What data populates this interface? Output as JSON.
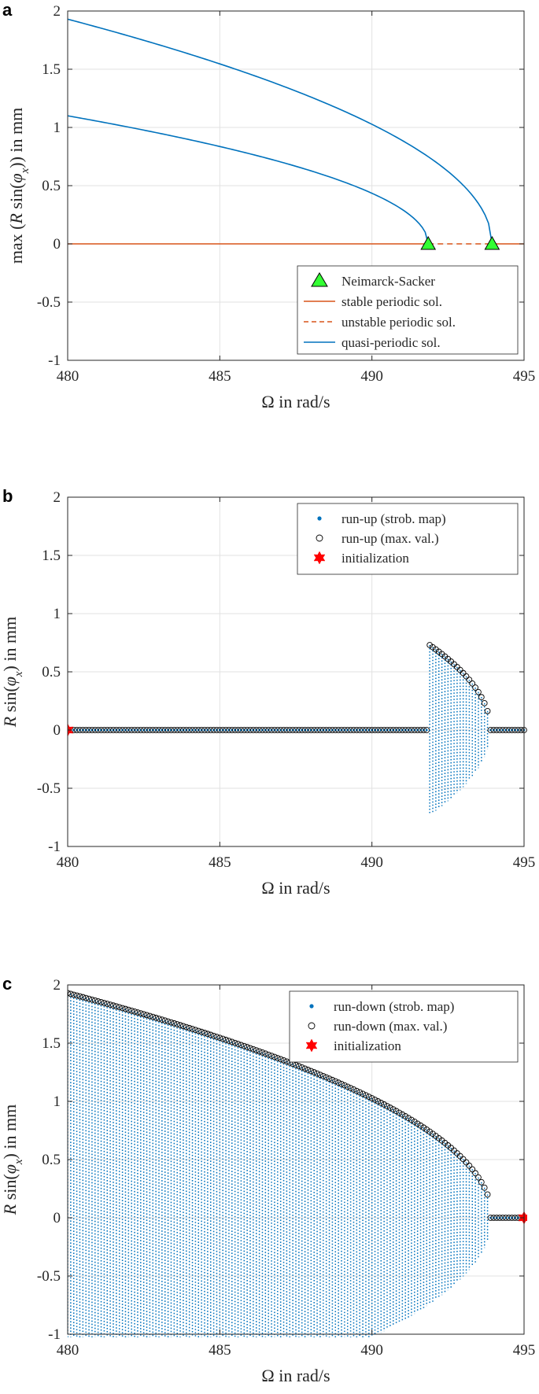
{
  "colors": {
    "blue": "#0072bd",
    "orange": "#d95319",
    "green": "#33ff33",
    "red": "#ff0000",
    "grid": "#e2e2e2",
    "axis": "#262626"
  },
  "chart_data": [
    {
      "panel": "a",
      "type": "line",
      "xlabel": "Ω in rad/s",
      "ylabel": "max (R sin(φx)) in mm",
      "xlim": [
        480,
        495
      ],
      "ylim": [
        -1,
        2
      ],
      "xticks": [
        480,
        485,
        490,
        495
      ],
      "yticks": [
        -1,
        -0.5,
        0,
        0.5,
        1,
        1.5,
        2
      ],
      "ytick_labels": [
        "-1",
        "-0.5",
        "0",
        "0.5",
        "1",
        "1.5",
        "2"
      ],
      "grid": true,
      "legend_position": "bottom-right",
      "legend": [
        "Neimarck-Sacker",
        "stable periodic sol.",
        "unstable periodic sol.",
        "quasi-periodic sol."
      ],
      "series": [
        {
          "name": "stable periodic sol.",
          "style": "solid",
          "color": "orange",
          "x": [
            480,
            491.85
          ],
          "y": [
            0,
            0
          ]
        },
        {
          "name": "unstable periodic sol.",
          "style": "dashed",
          "color": "orange",
          "x": [
            491.85,
            493.95
          ],
          "y": [
            0,
            0
          ]
        },
        {
          "name": "stable periodic sol.",
          "style": "solid",
          "color": "orange",
          "x": [
            493.95,
            495
          ],
          "y": [
            0,
            0
          ]
        },
        {
          "name": "quasi-periodic sol.",
          "style": "solid",
          "color": "blue",
          "amplitude": 1.93,
          "x_end": 493.95,
          "x_start": 480
        },
        {
          "name": "quasi-periodic sol.",
          "style": "solid",
          "color": "blue",
          "amplitude": 1.1,
          "x_end": 491.85,
          "x_start": 480
        }
      ],
      "markers": [
        {
          "name": "Neimarck-Sacker",
          "x": 491.85,
          "y": 0
        },
        {
          "name": "Neimarck-Sacker",
          "x": 493.95,
          "y": 0
        }
      ]
    },
    {
      "panel": "b",
      "type": "scatter",
      "xlabel": "Ω in rad/s",
      "ylabel": "R sin(φx) in mm",
      "xlim": [
        480,
        495
      ],
      "ylim": [
        -1,
        2
      ],
      "xticks": [
        480,
        485,
        490,
        495
      ],
      "yticks": [
        -1,
        -0.5,
        0,
        0.5,
        1,
        1.5,
        2
      ],
      "ytick_labels": [
        "-1",
        "-0.5",
        "0",
        "0.5",
        "1",
        "1.5",
        "2"
      ],
      "grid": true,
      "legend_position": "top-right",
      "legend": [
        "run-up (strob. map)",
        "run-up (max. val.)",
        "initialization"
      ],
      "sweep": {
        "step": 0.1,
        "x_from": 480,
        "x_to": 495
      },
      "quasi_periodic_band": {
        "x_from": 491.9,
        "x_to": 493.8,
        "amplitude_at_onset": 0.73,
        "x_end": 493.9
      },
      "initialization": {
        "x": 480,
        "y": 0
      }
    },
    {
      "panel": "c",
      "type": "scatter",
      "xlabel": "Ω in rad/s",
      "ylabel": "R sin(φx) in mm",
      "xlim": [
        480,
        495
      ],
      "ylim": [
        -1,
        2
      ],
      "xticks": [
        480,
        485,
        490,
        495
      ],
      "yticks": [
        -1,
        -0.5,
        0,
        0.5,
        1,
        1.5,
        2
      ],
      "ytick_labels": [
        "-1",
        "-0.5",
        "0",
        "0.5",
        "1",
        "1.5",
        "2"
      ],
      "grid": true,
      "legend_position": "top-right",
      "legend": [
        "run-down (strob. map)",
        "run-down (max. val.)",
        "initialization"
      ],
      "sweep": {
        "step": 0.1,
        "x_from": 480,
        "x_to": 495
      },
      "quasi_periodic_band": {
        "x_from": 480,
        "x_to": 493.8,
        "amplitude": 1.93,
        "x_end": 493.95
      },
      "initialization": {
        "x": 495,
        "y": 0
      }
    }
  ]
}
